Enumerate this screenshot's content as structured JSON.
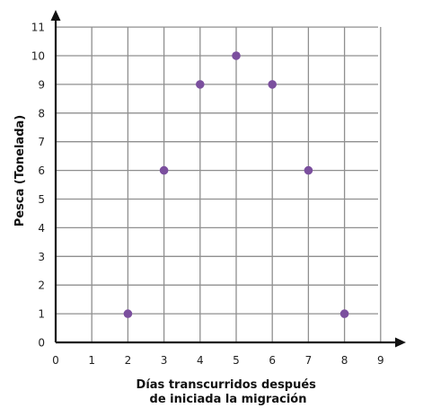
{
  "chart_data": {
    "type": "scatter",
    "xlabel_lines": [
      "Días transcurridos después",
      "de iniciada la migración"
    ],
    "ylabel": "Pesca (Tonelada)",
    "xlim": [
      0,
      9
    ],
    "ylim": [
      0,
      11
    ],
    "x_ticks": [
      0,
      1,
      2,
      3,
      4,
      5,
      6,
      7,
      8,
      9
    ],
    "y_ticks": [
      0,
      1,
      2,
      3,
      4,
      5,
      6,
      7,
      8,
      9,
      10,
      11
    ],
    "grid": true,
    "point_color": "#7b4f9e",
    "points": [
      {
        "x": 2,
        "y": 1
      },
      {
        "x": 3,
        "y": 6
      },
      {
        "x": 4,
        "y": 9
      },
      {
        "x": 5,
        "y": 10
      },
      {
        "x": 6,
        "y": 9
      },
      {
        "x": 7,
        "y": 6
      },
      {
        "x": 8,
        "y": 1
      }
    ]
  }
}
